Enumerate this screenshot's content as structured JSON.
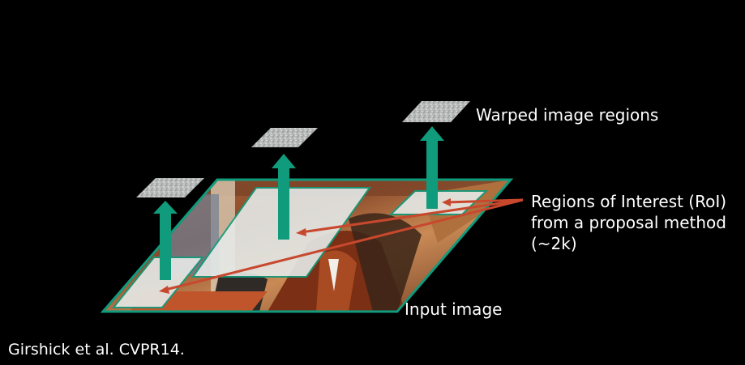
{
  "labels": {
    "warped_regions": "Warped image regions",
    "roi_line1": "Regions of Interest (RoI)",
    "roi_line2": "from a proposal method",
    "roi_line3": "(~2k)",
    "input_image": "Input image",
    "citation": "Girshick et al. CVPR14."
  },
  "colors": {
    "background": "#000000",
    "arrow_teal": "#0f9b7c",
    "pointer_red": "#c8482e",
    "region_fill": "#e8ecea",
    "patch_gray": "#b9bcbb"
  }
}
